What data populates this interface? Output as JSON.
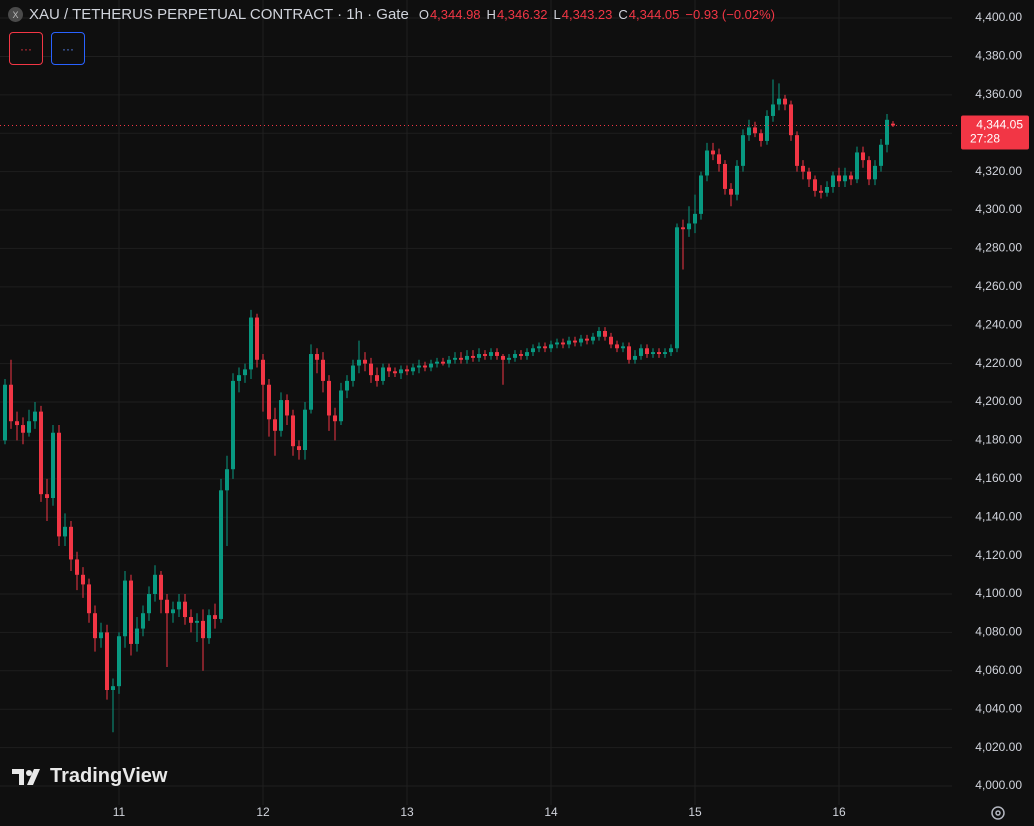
{
  "header": {
    "icon": "X",
    "title": "XAU / TETHERUS PERPETUAL CONTRACT · 1h · Gate",
    "ohlc": [
      {
        "key": "O",
        "value": "4,344.98"
      },
      {
        "key": "H",
        "value": "4,346.32"
      },
      {
        "key": "L",
        "value": "4,343.23"
      },
      {
        "key": "C",
        "value": "4,344.05"
      }
    ],
    "change": "−0.93 (−0.02%)",
    "buttons": [
      "···",
      "···"
    ]
  },
  "watermark": "TradingView",
  "chart_data": {
    "type": "candlestick",
    "up_color": "#089981",
    "down_color": "#f23645",
    "grid": true,
    "categories": [
      null,
      null,
      null,
      null,
      null,
      null,
      null,
      null,
      null,
      null,
      null,
      null,
      null,
      null,
      null,
      null,
      null,
      null,
      null,
      "11",
      null,
      null,
      null,
      null,
      null,
      null,
      null,
      null,
      null,
      null,
      null,
      null,
      null,
      null,
      null,
      null,
      null,
      null,
      null,
      null,
      null,
      null,
      null,
      "12",
      null,
      null,
      null,
      null,
      null,
      null,
      null,
      null,
      null,
      null,
      null,
      null,
      null,
      null,
      null,
      null,
      null,
      null,
      null,
      null,
      null,
      null,
      null,
      "13",
      null,
      null,
      null,
      null,
      null,
      null,
      null,
      null,
      null,
      null,
      null,
      null,
      null,
      null,
      null,
      null,
      null,
      null,
      null,
      null,
      null,
      null,
      null,
      "14",
      null,
      null,
      null,
      null,
      null,
      null,
      null,
      null,
      null,
      null,
      null,
      null,
      null,
      null,
      null,
      null,
      null,
      null,
      null,
      null,
      null,
      null,
      null,
      "15",
      null,
      null,
      null,
      null,
      null,
      null,
      null,
      null,
      null,
      null,
      null,
      null,
      null,
      null,
      null,
      null,
      null,
      null,
      null,
      null,
      null,
      null,
      null,
      "16",
      null,
      null,
      null,
      null,
      null,
      null,
      null,
      null,
      null
    ],
    "series": [
      {
        "open": [
          4180,
          4209,
          4190,
          4188,
          4184,
          4190,
          4195,
          4152,
          4150,
          4184,
          4130,
          4135,
          4118,
          4110,
          4105,
          4090,
          4077,
          4080,
          4050,
          4052,
          4078,
          4107,
          4074,
          4082,
          4090,
          4100,
          4110,
          4097,
          4090,
          4092,
          4096,
          4088,
          4085,
          4086,
          4077,
          4089,
          4087,
          4154,
          4165,
          4211,
          4214,
          4217,
          4244,
          4222,
          4209,
          4191,
          4185,
          4201,
          4193,
          4177,
          4175,
          4196,
          4225,
          4222,
          4211,
          4193,
          4190,
          4206,
          4211,
          4219,
          4222,
          4220,
          4214,
          4211,
          4218,
          4216,
          4215,
          4217,
          4216,
          4218,
          4219,
          4218,
          4220,
          4221,
          4220,
          4222,
          4223,
          4222,
          4224,
          4223,
          4225,
          4224,
          4226,
          4224,
          4222,
          4223,
          4225,
          4224,
          4226,
          4228,
          4229,
          4228,
          4230,
          4231,
          4230,
          4232,
          4231,
          4233,
          4232,
          4234,
          4237,
          4234,
          4230,
          4228,
          4229,
          4222,
          4224,
          4228,
          4225,
          4226,
          4225,
          4226,
          4228,
          4291,
          4290,
          4293,
          4298,
          4318,
          4331,
          4329,
          4324,
          4311,
          4308,
          4323,
          4339,
          4343,
          4340,
          4336,
          4349,
          4355,
          4358,
          4355,
          4339,
          4323,
          4320,
          4316,
          4310,
          4309,
          4312,
          4318,
          4315,
          4318,
          4316,
          4330,
          4326,
          4316,
          4323,
          4334,
          4344.98
        ],
        "high": [
          4212,
          4222,
          4195,
          4192,
          4196,
          4200,
          4198,
          4160,
          4188,
          4188,
          4142,
          4138,
          4122,
          4114,
          4108,
          4094,
          4085,
          4084,
          4056,
          4080,
          4112,
          4110,
          4088,
          4094,
          4104,
          4115,
          4112,
          4100,
          4096,
          4100,
          4100,
          4092,
          4090,
          4092,
          4092,
          4095,
          4160,
          4172,
          4215,
          4218,
          4220,
          4248,
          4246,
          4225,
          4212,
          4197,
          4205,
          4204,
          4196,
          4180,
          4200,
          4230,
          4228,
          4226,
          4214,
          4197,
          4210,
          4214,
          4222,
          4232,
          4226,
          4223,
          4218,
          4220,
          4220,
          4218,
          4219,
          4219,
          4220,
          4222,
          4221,
          4222,
          4223,
          4223,
          4224,
          4226,
          4226,
          4227,
          4227,
          4228,
          4227,
          4228,
          4228,
          4225,
          4225,
          4227,
          4227,
          4228,
          4230,
          4231,
          4231,
          4232,
          4233,
          4233,
          4234,
          4234,
          4235,
          4235,
          4236,
          4239,
          4239,
          4236,
          4232,
          4231,
          4231,
          4227,
          4230,
          4230,
          4228,
          4228,
          4228,
          4230,
          4293,
          4295,
          4302,
          4308,
          4320,
          4335,
          4335,
          4332,
          4326,
          4314,
          4326,
          4342,
          4347,
          4346,
          4342,
          4352,
          4368,
          4366,
          4360,
          4357,
          4341,
          4326,
          4322,
          4318,
          4313,
          4315,
          4320,
          4322,
          4322,
          4320,
          4333,
          4333,
          4328,
          4326,
          4337,
          4350,
          4346.32
        ],
        "low": [
          4178,
          4186,
          4180,
          4178,
          4182,
          4186,
          4148,
          4138,
          4146,
          4125,
          4125,
          4112,
          4102,
          4098,
          4085,
          4070,
          4072,
          4045,
          4028,
          4048,
          4072,
          4068,
          4070,
          4078,
          4086,
          4096,
          4090,
          4062,
          4085,
          4088,
          4084,
          4080,
          4075,
          4060,
          4074,
          4082,
          4085,
          4125,
          4160,
          4205,
          4210,
          4212,
          4218,
          4195,
          4182,
          4172,
          4182,
          4188,
          4172,
          4170,
          4170,
          4194,
          4215,
          4205,
          4185,
          4180,
          4188,
          4202,
          4208,
          4215,
          4216,
          4210,
          4208,
          4209,
          4213,
          4213,
          4212,
          4214,
          4214,
          4215,
          4216,
          4216,
          4218,
          4219,
          4218,
          4220,
          4220,
          4220,
          4221,
          4221,
          4222,
          4222,
          4222,
          4209,
          4220,
          4221,
          4222,
          4222,
          4224,
          4226,
          4226,
          4226,
          4228,
          4228,
          4228,
          4229,
          4229,
          4230,
          4230,
          4232,
          4232,
          4228,
          4226,
          4226,
          4220,
          4220,
          4222,
          4223,
          4223,
          4223,
          4223,
          4224,
          4226,
          4269,
          4286,
          4288,
          4295,
          4315,
          4326,
          4320,
          4308,
          4302,
          4305,
          4320,
          4336,
          4338,
          4333,
          4334,
          4346,
          4352,
          4352,
          4336,
          4320,
          4316,
          4312,
          4307,
          4306,
          4307,
          4309,
          4312,
          4312,
          4313,
          4314,
          4322,
          4313,
          4313,
          4320,
          4330,
          4343.23
        ],
        "close": [
          4209,
          4190,
          4188,
          4184,
          4190,
          4195,
          4152,
          4150,
          4184,
          4130,
          4135,
          4118,
          4110,
          4105,
          4090,
          4077,
          4080,
          4050,
          4052,
          4078,
          4107,
          4074,
          4082,
          4090,
          4100,
          4110,
          4097,
          4090,
          4092,
          4096,
          4088,
          4085,
          4086,
          4077,
          4089,
          4087,
          4154,
          4165,
          4211,
          4214,
          4217,
          4244,
          4222,
          4209,
          4191,
          4185,
          4201,
          4193,
          4177,
          4175,
          4196,
          4225,
          4222,
          4211,
          4193,
          4190,
          4206,
          4211,
          4219,
          4222,
          4220,
          4214,
          4211,
          4218,
          4216,
          4215,
          4217,
          4216,
          4218,
          4219,
          4218,
          4220,
          4221,
          4220,
          4222,
          4223,
          4222,
          4224,
          4223,
          4225,
          4224,
          4226,
          4224,
          4222,
          4223,
          4225,
          4224,
          4226,
          4228,
          4229,
          4228,
          4230,
          4231,
          4230,
          4232,
          4231,
          4233,
          4232,
          4234,
          4237,
          4234,
          4230,
          4228,
          4229,
          4222,
          4224,
          4228,
          4225,
          4226,
          4225,
          4226,
          4228,
          4291,
          4290,
          4293,
          4298,
          4318,
          4331,
          4329,
          4324,
          4311,
          4308,
          4323,
          4339,
          4343,
          4340,
          4336,
          4349,
          4355,
          4358,
          4355,
          4339,
          4323,
          4320,
          4316,
          4310,
          4309,
          4312,
          4318,
          4315,
          4318,
          4316,
          4330,
          4326,
          4316,
          4323,
          4334,
          4347,
          4344.05
        ]
      }
    ],
    "last_price": {
      "value": 4344.05,
      "label": "4,344.05",
      "countdown": "27:28",
      "color": "#f23645"
    },
    "ylim": [
      3990.1,
      4409.4
    ],
    "yticks": [
      {
        "value": 4000,
        "label": "4,000.00"
      },
      {
        "value": 4020,
        "label": "4,020.00"
      },
      {
        "value": 4040,
        "label": "4,040.00"
      },
      {
        "value": 4060,
        "label": "4,060.00"
      },
      {
        "value": 4080,
        "label": "4,080.00"
      },
      {
        "value": 4100,
        "label": "4,100.00"
      },
      {
        "value": 4120,
        "label": "4,120.00"
      },
      {
        "value": 4140,
        "label": "4,140.00"
      },
      {
        "value": 4160,
        "label": "4,160.00"
      },
      {
        "value": 4180,
        "label": "4,180.00"
      },
      {
        "value": 4200,
        "label": "4,200.00"
      },
      {
        "value": 4220,
        "label": "4,220.00"
      },
      {
        "value": 4240,
        "label": "4,240.00"
      },
      {
        "value": 4260,
        "label": "4,260.00"
      },
      {
        "value": 4280,
        "label": "4,280.00"
      },
      {
        "value": 4300,
        "label": "4,300.00"
      },
      {
        "value": 4320,
        "label": "4,320.00"
      },
      {
        "value": 4340,
        "label": "4,340.00"
      },
      {
        "value": 4360,
        "label": "4,360.00"
      },
      {
        "value": 4380,
        "label": "4,380.00"
      },
      {
        "value": 4400,
        "label": "4,400.00"
      }
    ]
  }
}
